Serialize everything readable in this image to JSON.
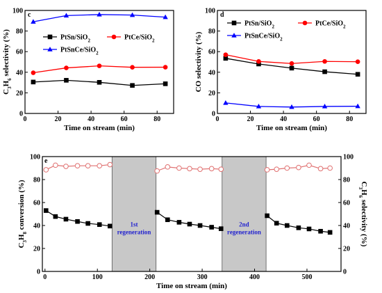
{
  "chart_data": [
    {
      "panel": "c",
      "type": "line",
      "xlabel": "Time on stream (min)",
      "ylabel": "C3H6 selectivity (%)",
      "xlim": [
        0,
        90
      ],
      "ylim": [
        0,
        100
      ],
      "xticks": [
        0,
        20,
        40,
        60,
        80
      ],
      "yticks": [
        0,
        20,
        40,
        60,
        80,
        100
      ],
      "legend": "upper-left",
      "x": [
        5,
        25,
        45,
        65,
        85
      ],
      "series": [
        {
          "name": "PtSn/SiO2",
          "marker": "square",
          "color": "#000000",
          "values": [
            30.5,
            32.2,
            30.2,
            27.2,
            28.8
          ]
        },
        {
          "name": "PtCe/SiO2",
          "marker": "circle",
          "color": "#ff0000",
          "values": [
            39.5,
            44.2,
            46.2,
            44.8,
            44.9
          ]
        },
        {
          "name": "PtSnCe/SiO2",
          "marker": "triangle",
          "color": "#0000ff",
          "values": [
            89.0,
            95.0,
            96.0,
            95.5,
            93.5
          ]
        }
      ]
    },
    {
      "panel": "d",
      "type": "line",
      "xlabel": "Time on stream (min)",
      "ylabel": "CO selectivity (%)",
      "xlim": [
        0,
        90
      ],
      "ylim": [
        0,
        100
      ],
      "xticks": [
        0,
        20,
        40,
        60,
        80
      ],
      "yticks": [
        0,
        20,
        40,
        60,
        80,
        100
      ],
      "legend": "upper",
      "x": [
        5,
        25,
        45,
        65,
        85
      ],
      "series": [
        {
          "name": "PtSn/SiO2",
          "marker": "square",
          "color": "#000000",
          "values": [
            53.5,
            48.0,
            44.0,
            40.5,
            38.0
          ]
        },
        {
          "name": "PtCe/SiO2",
          "marker": "circle",
          "color": "#ff0000",
          "values": [
            57.0,
            50.5,
            48.5,
            50.5,
            50.2
          ]
        },
        {
          "name": "PtSnCe/SiO2",
          "marker": "triangle",
          "color": "#0000ff",
          "values": [
            10.2,
            6.8,
            6.2,
            6.8,
            7.0
          ]
        }
      ]
    },
    {
      "panel": "e",
      "type": "line",
      "xlabel": "Time on stream (min)",
      "ylabel": "C3H8 conversion (%)",
      "ylabel_right": "C3H6 selectivity (%)",
      "xlim": [
        -5,
        565
      ],
      "ylim": [
        0,
        100
      ],
      "ylim_right": [
        0,
        100
      ],
      "xticks": [
        0,
        100,
        200,
        300,
        400,
        500
      ],
      "yticks": [
        0,
        20,
        40,
        60,
        80,
        100
      ],
      "yticks_right": [
        0,
        20,
        40,
        60,
        80,
        100
      ],
      "regions": [
        {
          "label": "1st regeneration",
          "x": [
            128,
            212
          ]
        },
        {
          "label": "2nd regeneration",
          "x": [
            338,
            422
          ]
        }
      ],
      "series": [
        {
          "name": "C3H8 conversion",
          "axis": "left",
          "marker": "square",
          "color": "#000000",
          "segments": [
            {
              "x": [
                2,
                20,
                40,
                62,
                82,
                104,
                124
              ],
              "y": [
                53,
                47.8,
                45.5,
                43.5,
                41.8,
                40.8,
                39.5
              ]
            },
            {
              "x": [
                214,
                234,
                256,
                276,
                296,
                318,
                336
              ],
              "y": [
                51.5,
                45,
                42.8,
                41.2,
                40,
                38.5,
                37.2
              ]
            },
            {
              "x": [
                424,
                442,
                462,
                484,
                504,
                526,
                544
              ],
              "y": [
                48.5,
                42,
                40,
                38,
                37,
                35,
                34
              ]
            }
          ]
        },
        {
          "name": "C3H6 selectivity",
          "axis": "right",
          "marker": "open-circle",
          "color": "#e07070",
          "segments": [
            {
              "x": [
                2,
                20,
                40,
                62,
                82,
                104,
                124
              ],
              "y": [
                88.5,
                92.5,
                91.5,
                92,
                92,
                92,
                93
              ]
            },
            {
              "x": [
                214,
                234,
                256,
                276,
                296,
                318,
                336
              ],
              "y": [
                87.5,
                91,
                90,
                89.5,
                89,
                89.5,
                89
              ]
            },
            {
              "x": [
                424,
                442,
                462,
                484,
                504,
                526,
                544
              ],
              "y": [
                88.5,
                89,
                90,
                90.5,
                92.5,
                89.5,
                90
              ]
            }
          ]
        }
      ]
    }
  ]
}
